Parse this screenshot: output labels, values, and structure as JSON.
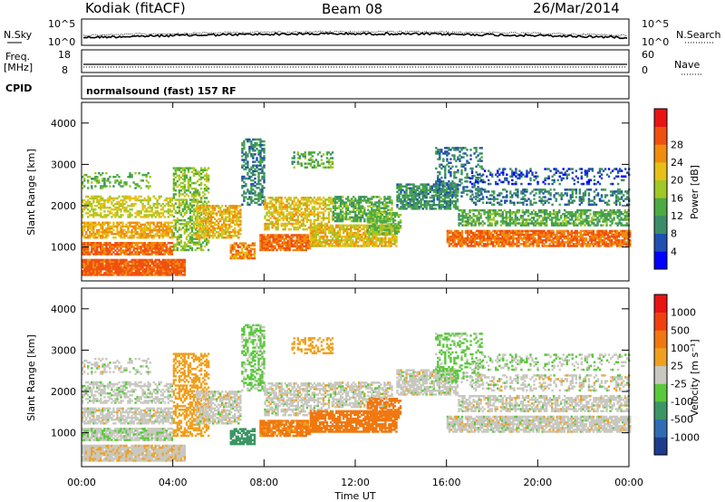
{
  "header": {
    "station": "Kodiak (fitACF)",
    "beam": "Beam 08",
    "date": "26/Mar/2014"
  },
  "noise_panel": {
    "left_label": "N.Sky",
    "right_label": "N.Search",
    "ticks": [
      "10^5",
      "10^0"
    ]
  },
  "freq_panel": {
    "left_label": "Freq.",
    "left_unit": "[MHz]",
    "left_ticks": [
      "18",
      "8"
    ],
    "right_label": "Nave",
    "right_ticks": [
      "60",
      "0"
    ]
  },
  "cpid_panel": {
    "label": "CPID",
    "mode": "normalsound (fast) 157 RF"
  },
  "chart_data": [
    {
      "type": "heatmap",
      "quantity": "Power",
      "ylabel": "Slant Range [km]",
      "ylim": [
        180,
        4500
      ],
      "yticks": [
        "1000",
        "2000",
        "3000",
        "4000"
      ],
      "xlim": [
        0,
        24
      ],
      "colorbar": {
        "title": "Power [dB]",
        "ticks": [
          "4",
          "8",
          "12",
          "16",
          "20",
          "24",
          "28"
        ],
        "colors": [
          "#0000ff",
          "#2050b0",
          "#3c8c6a",
          "#4caa44",
          "#a0c826",
          "#e6c018",
          "#f08c10",
          "#f05010",
          "#e81414"
        ]
      }
    },
    {
      "type": "heatmap",
      "quantity": "Velocity",
      "ylabel": "Slant Range [km]",
      "ylim": [
        180,
        4500
      ],
      "yticks": [
        "1000",
        "2000",
        "3000",
        "4000"
      ],
      "xlim": [
        0,
        24
      ],
      "xlabel": "Time UT",
      "xticks": [
        "00:00",
        "04:00",
        "08:00",
        "12:00",
        "16:00",
        "20:00",
        "00:00"
      ],
      "colorbar": {
        "title": "Velocity [m s⁻¹]",
        "ticks": [
          "1000",
          "500",
          "100",
          "25",
          "-25",
          "-100",
          "-500",
          "-1000"
        ],
        "colors": [
          "#1e3c8c",
          "#2f6cb4",
          "#3c9664",
          "#5ac83c",
          "#c8c8c0",
          "#f0a020",
          "#f07810",
          "#f04010",
          "#e81414"
        ]
      }
    }
  ]
}
